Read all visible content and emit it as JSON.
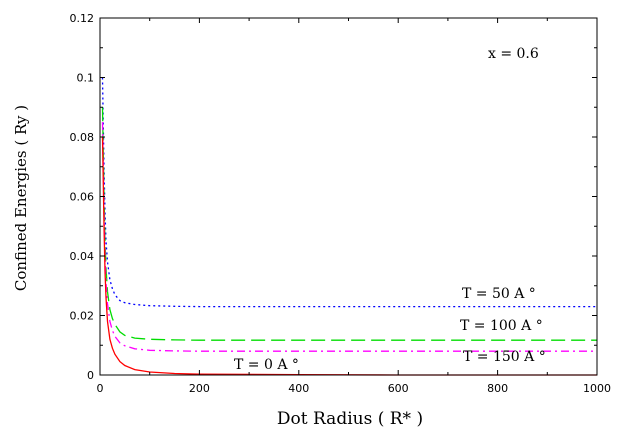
{
  "chart_data": {
    "type": "line",
    "title": "",
    "xlabel": "Dot Radius ( R* )",
    "ylabel": "Confined Energies ( Ry )",
    "xlim": [
      0,
      1000
    ],
    "ylim": [
      0,
      0.12
    ],
    "x_ticks": [
      0,
      200,
      400,
      600,
      800,
      1000
    ],
    "y_ticks": [
      0,
      0.02,
      0.04,
      0.06,
      0.08,
      0.1,
      0.12
    ],
    "x_tick_labels": [
      "0",
      "200",
      "400",
      "600",
      "800",
      "1000"
    ],
    "y_tick_labels": [
      "0",
      "0.02",
      "0.04",
      "0.06",
      "0.08",
      "0.1",
      "0.12"
    ],
    "grid": false,
    "annotation": "x = 0.6",
    "series": [
      {
        "name": "T = 50 A °",
        "color": "#0000ff",
        "dash": "dotted",
        "x": [
          5,
          8,
          10,
          12,
          15,
          20,
          25,
          30,
          40,
          50,
          70,
          100,
          150,
          200,
          400,
          600,
          800,
          1000
        ],
        "y": [
          0.1,
          0.07,
          0.055,
          0.045,
          0.038,
          0.032,
          0.029,
          0.027,
          0.025,
          0.0243,
          0.0237,
          0.0233,
          0.0231,
          0.023,
          0.023,
          0.023,
          0.023,
          0.023
        ]
      },
      {
        "name": "T = 100 A °",
        "color": "#00dd00",
        "dash": "long-dash",
        "x": [
          5,
          8,
          10,
          12,
          15,
          20,
          25,
          30,
          40,
          50,
          70,
          100,
          150,
          200,
          400,
          600,
          800,
          1000
        ],
        "y": [
          0.09,
          0.06,
          0.045,
          0.036,
          0.028,
          0.022,
          0.019,
          0.017,
          0.0145,
          0.0133,
          0.0124,
          0.012,
          0.0118,
          0.0117,
          0.0117,
          0.0117,
          0.0117,
          0.0117
        ]
      },
      {
        "name": "T = 150 A °",
        "color": "#ff00ff",
        "dash": "dash-dot",
        "x": [
          5,
          8,
          10,
          12,
          15,
          20,
          25,
          30,
          40,
          50,
          70,
          100,
          150,
          200,
          400,
          600,
          800,
          1000
        ],
        "y": [
          0.085,
          0.055,
          0.04,
          0.031,
          0.024,
          0.018,
          0.015,
          0.013,
          0.0108,
          0.0098,
          0.0088,
          0.0083,
          0.0081,
          0.008,
          0.008,
          0.008,
          0.008,
          0.008
        ]
      },
      {
        "name": "T = 0 A °",
        "color": "#ff0000",
        "dash": "solid",
        "x": [
          5,
          8,
          10,
          12,
          15,
          20,
          25,
          30,
          40,
          50,
          70,
          100,
          150,
          200,
          400,
          600,
          800,
          1000
        ],
        "y": [
          0.08,
          0.05,
          0.035,
          0.026,
          0.018,
          0.012,
          0.009,
          0.007,
          0.0045,
          0.0032,
          0.0018,
          0.001,
          0.0005,
          0.0003,
          0.0001,
          0.0,
          0.0,
          0.0
        ]
      }
    ]
  }
}
